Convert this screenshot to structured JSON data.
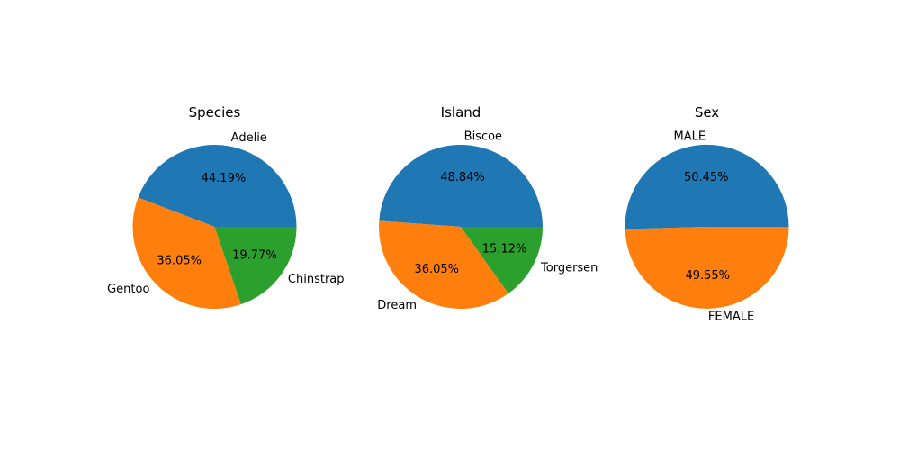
{
  "chart_data": [
    {
      "type": "pie",
      "title": "Species",
      "categories": [
        "Adelie",
        "Gentoo",
        "Chinstrap"
      ],
      "values": [
        44.19,
        36.05,
        19.77
      ],
      "percent_labels": [
        "44.19%",
        "36.05%",
        "19.77%"
      ],
      "colors": [
        "#1f77b4",
        "#ff7f0e",
        "#2ca02c"
      ],
      "legend": "none"
    },
    {
      "type": "pie",
      "title": "Island",
      "categories": [
        "Biscoe",
        "Dream",
        "Torgersen"
      ],
      "values": [
        48.84,
        36.05,
        15.12
      ],
      "percent_labels": [
        "48.84%",
        "36.05%",
        "15.12%"
      ],
      "colors": [
        "#1f77b4",
        "#ff7f0e",
        "#2ca02c"
      ],
      "legend": "none"
    },
    {
      "type": "pie",
      "title": "Sex",
      "categories": [
        "MALE",
        "FEMALE"
      ],
      "values": [
        50.45,
        49.55
      ],
      "percent_labels": [
        "50.45%",
        "49.55%"
      ],
      "colors": [
        "#1f77b4",
        "#ff7f0e"
      ],
      "legend": "none"
    }
  ]
}
